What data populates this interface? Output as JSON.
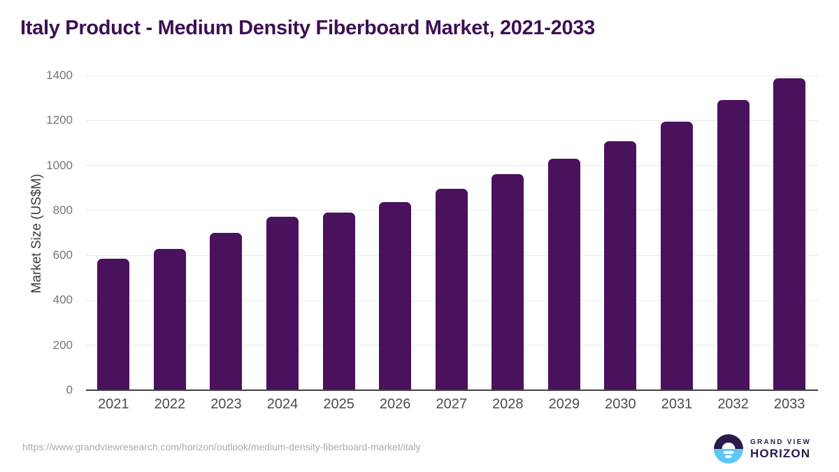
{
  "title": "Italy Product - Medium Density Fiberboard Market, 2021-2033",
  "chart_data": {
    "type": "bar",
    "title": "Italy Product - Medium Density Fiberboard Market, 2021-2033",
    "categories": [
      "2021",
      "2022",
      "2023",
      "2024",
      "2025",
      "2026",
      "2027",
      "2028",
      "2029",
      "2030",
      "2031",
      "2032",
      "2033"
    ],
    "values": [
      584,
      628,
      700,
      772,
      789,
      837,
      895,
      960,
      1031,
      1109,
      1196,
      1291,
      1389
    ],
    "series_name": "Market Size",
    "xlabel": "",
    "ylabel": "Market Size (US$M)",
    "ylim": [
      0,
      1400
    ],
    "yticks": [
      0,
      200,
      400,
      600,
      800,
      1000,
      1200,
      1400
    ],
    "grid": "horizontal",
    "legend": "none",
    "bar_color": "#4a115c",
    "gridline_color": "#e9e9ec",
    "axis_line_color": "#3f3f3f",
    "tick_label_color": "#757575",
    "x_label_color": "#4a4a4a",
    "title_color": "#3e0f54"
  },
  "footer": {
    "source_url": "https://www.grandviewresearch.com/horizon/outlook/medium-density-fiberboard-market/italy",
    "logo": {
      "line1": "GRAND VIEW",
      "line2": "HORIZON",
      "icon": "sunrise-horizon-icon",
      "dark_color": "#2b1b4a",
      "blue_color": "#5ec7f2"
    }
  }
}
